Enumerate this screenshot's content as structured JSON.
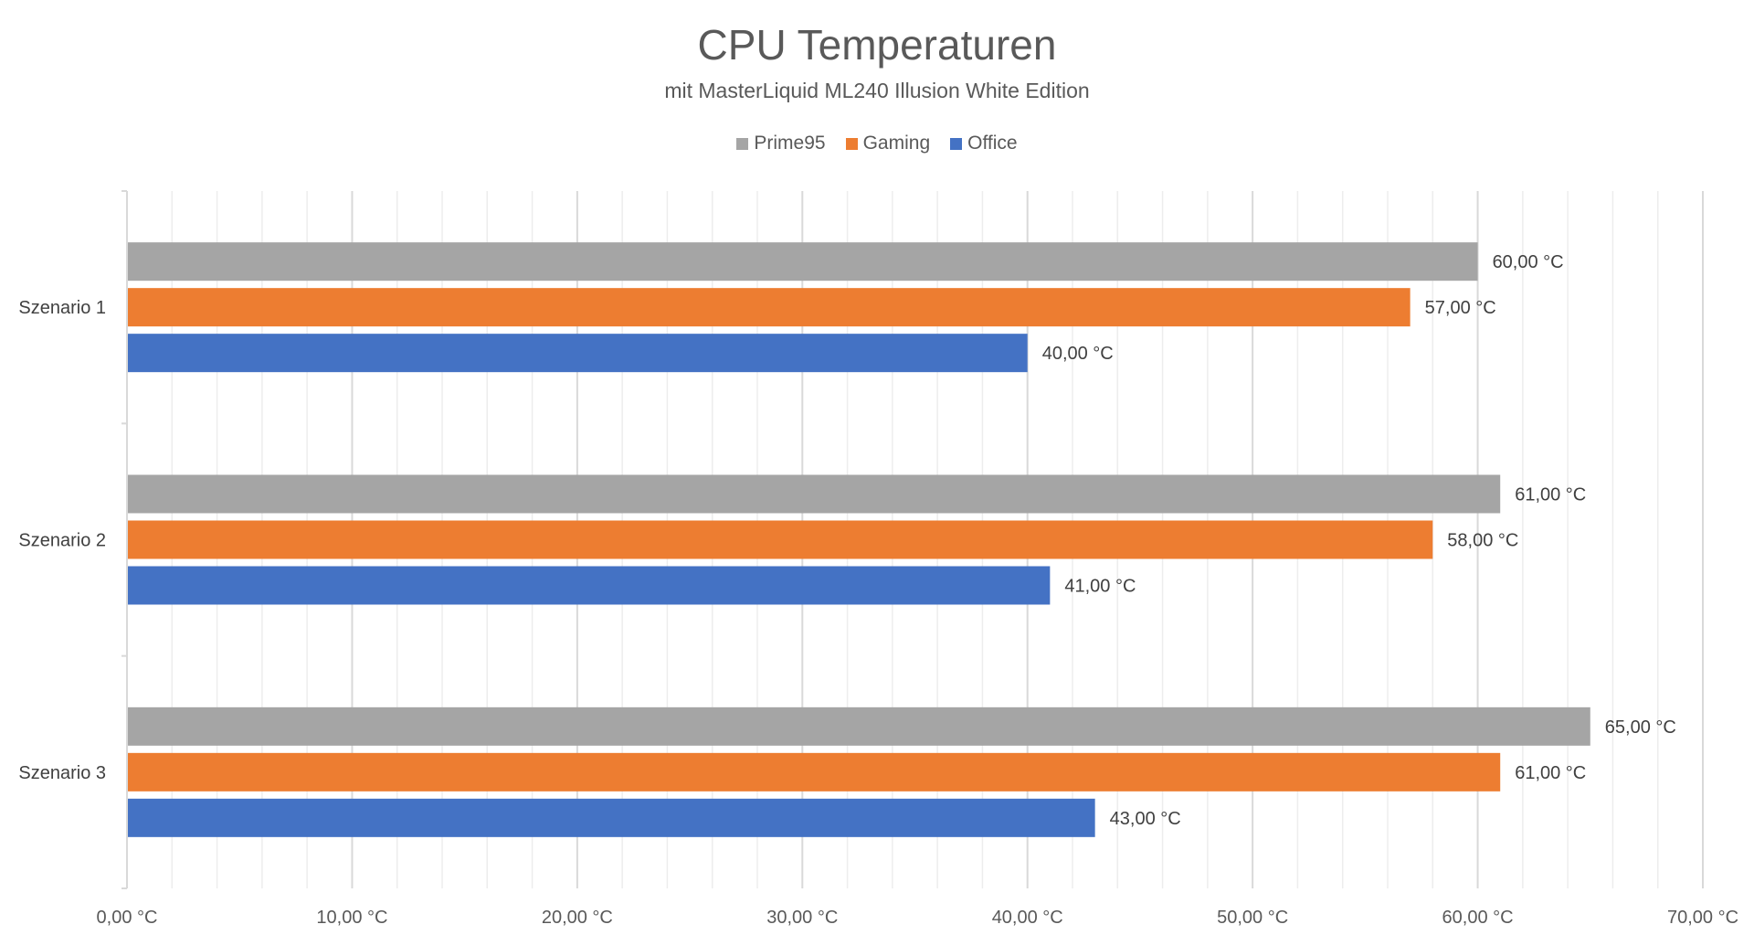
{
  "chart_data": {
    "type": "bar",
    "orientation": "horizontal",
    "title": "CPU Temperaturen",
    "subtitle": "mit MasterLiquid ML240 Illusion White Edition",
    "categories": [
      "Szenario 1",
      "Szenario 2",
      "Szenario 3"
    ],
    "series": [
      {
        "name": "Prime95",
        "color": "#A5A5A5",
        "values": [
          60,
          61,
          65
        ],
        "labels": [
          "60,00 °C",
          "61,00 °C",
          "65,00 °C"
        ]
      },
      {
        "name": "Gaming",
        "color": "#ED7D31",
        "values": [
          57,
          58,
          61
        ],
        "labels": [
          "57,00 °C",
          "58,00 °C",
          "61,00 °C"
        ]
      },
      {
        "name": "Office",
        "color": "#4472C4",
        "values": [
          40,
          41,
          43
        ],
        "labels": [
          "40,00 °C",
          "41,00 °C",
          "43,00 °C"
        ]
      }
    ],
    "xlim": [
      0,
      70
    ],
    "xticks": [
      "0,00 °C",
      "10,00 °C",
      "20,00 °C",
      "30,00 °C",
      "40,00 °C",
      "50,00 °C",
      "60,00 °C",
      "70,00 °C"
    ],
    "grid": true,
    "legend": "top"
  }
}
